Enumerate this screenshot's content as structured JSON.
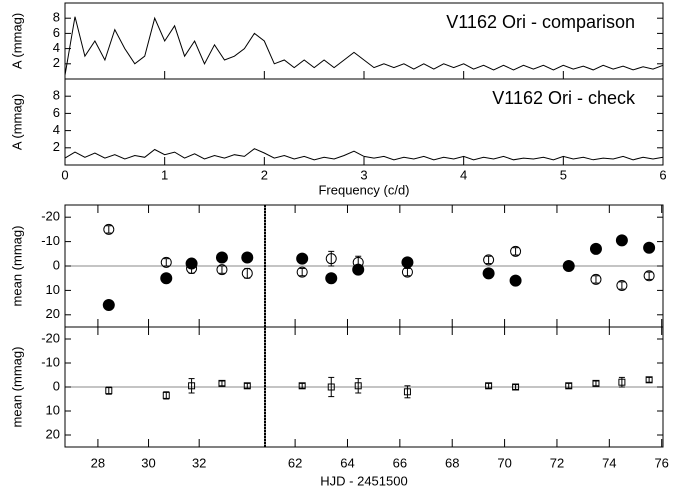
{
  "chart_data": [
    {
      "type": "line",
      "x_label": "Frequency (c/d)",
      "xlim": [
        0,
        6
      ],
      "xticks": [
        0,
        1,
        2,
        3,
        4,
        5,
        6
      ],
      "x": [
        0,
        0.1,
        0.2,
        0.3,
        0.4,
        0.5,
        0.6,
        0.7,
        0.8,
        0.9,
        1,
        1.1,
        1.2,
        1.3,
        1.4,
        1.5,
        1.6,
        1.7,
        1.8,
        1.9,
        2,
        2.1,
        2.2,
        2.3,
        2.4,
        2.5,
        2.6,
        2.7,
        2.8,
        2.9,
        3,
        3.1,
        3.2,
        3.3,
        3.4,
        3.5,
        3.6,
        3.7,
        3.8,
        3.9,
        4,
        4.1,
        4.2,
        4.3,
        4.4,
        4.5,
        4.6,
        4.7,
        4.8,
        4.9,
        5,
        5.1,
        5.2,
        5.3,
        5.4,
        5.5,
        5.6,
        5.7,
        5.8,
        5.9,
        6
      ],
      "panels": [
        {
          "y_label": "A (mmag)",
          "ylim": [
            0,
            10
          ],
          "yticks": [
            2,
            4,
            6,
            8
          ],
          "series": [
            {
              "name": "V1162 Ori - comparison",
              "color": "#000000",
              "values": [
                0.5,
                8.2,
                3,
                5,
                2.5,
                6.5,
                4,
                2,
                3,
                8,
                5,
                7,
                3,
                5,
                2,
                4.5,
                2.5,
                3,
                4,
                6,
                5,
                2,
                2.5,
                1.5,
                2.5,
                1.5,
                2.5,
                1.5,
                2.5,
                3.5,
                2.5,
                1.5,
                2,
                1.5,
                2,
                1.3,
                2,
                1.3,
                2,
                1.5,
                2,
                1.3,
                1.8,
                1.2,
                1.8,
                1.2,
                1.8,
                1.3,
                1.8,
                1.2,
                1.8,
                1.3,
                1.7,
                1.2,
                1.8,
                1.3,
                1.7,
                1.2,
                1.6,
                1.3,
                1.8
              ]
            }
          ]
        },
        {
          "y_label": "A (mmag)",
          "ylim": [
            0,
            10
          ],
          "yticks": [
            2,
            4,
            6,
            8
          ],
          "series": [
            {
              "name": "V1162 Ori - check",
              "color": "#000000",
              "values": [
                0.8,
                1.5,
                0.9,
                1.4,
                0.8,
                1.2,
                0.7,
                1.1,
                0.9,
                1.8,
                1.2,
                1.5,
                0.8,
                1.3,
                0.7,
                1.1,
                0.8,
                1.2,
                1.0,
                1.9,
                1.4,
                0.8,
                1.1,
                0.7,
                1.0,
                0.6,
                0.9,
                0.7,
                1.1,
                1.6,
                1.0,
                0.8,
                1.0,
                0.6,
                0.9,
                0.7,
                1.0,
                0.6,
                0.9,
                0.7,
                1.0,
                0.6,
                0.9,
                0.7,
                1.0,
                0.6,
                0.8,
                0.7,
                0.9,
                0.6,
                1.0,
                0.7,
                0.9,
                0.6,
                0.8,
                0.7,
                1.0,
                0.6,
                0.9,
                0.7,
                0.9
              ]
            }
          ]
        }
      ]
    },
    {
      "type": "scatter",
      "x_label": "HJD - 2451500",
      "segments": [
        {
          "xlim": [
            26.7,
            34.6
          ],
          "xticks": [
            28,
            30,
            32
          ]
        },
        {
          "xlim": [
            60.85,
            76.05
          ],
          "xticks": [
            62,
            64,
            66,
            68,
            70,
            72,
            74,
            76
          ]
        }
      ],
      "x": [
        28.43,
        30.7,
        31.7,
        32.9,
        33.9,
        62.27,
        63.38,
        64.41,
        66.29,
        69.39,
        70.42,
        72.45,
        73.49,
        74.48,
        75.52
      ],
      "zero_line": true,
      "zero_line_color": "#888888",
      "panels": [
        {
          "y_label": "mean (mmag)",
          "ylim": [
            25,
            -25
          ],
          "yticks": [
            -20,
            -10,
            0,
            10,
            20
          ],
          "series": [
            {
              "marker": "open-circle",
              "color": "#000000",
              "values": [
                -15,
                -1.5,
                1,
                1.5,
                3,
                2.5,
                -3,
                -1.5,
                2.5,
                -2.5,
                -6,
                0,
                5.5,
                8,
                4
              ],
              "errors": [
                1.5,
                1.5,
                2,
                1.5,
                2,
                1.5,
                3,
                2.5,
                1.5,
                1.5,
                1.5,
                1.5,
                1.5,
                1.5,
                1.5
              ]
            },
            {
              "marker": "filled-circle",
              "color": "#000000",
              "values": [
                16,
                5,
                -1,
                -3.5,
                -3.5,
                -3,
                5,
                1.5,
                -1.5,
                3,
                6,
                0,
                -7,
                -10.5,
                -7.5
              ],
              "errors": [
                1.5,
                1.5,
                1.5,
                1.5,
                1.5,
                1.5,
                1.5,
                1.5,
                1.5,
                1.5,
                1.5,
                1.5,
                1.5,
                1.5,
                1.5
              ]
            }
          ]
        },
        {
          "y_label": "mean (mmag)",
          "ylim": [
            25,
            -25
          ],
          "yticks": [
            -20,
            -10,
            0,
            10,
            20
          ],
          "series": [
            {
              "marker": "open-square",
              "color": "#000000",
              "values": [
                1.5,
                3.5,
                -0.5,
                -1.5,
                -0.5,
                -0.5,
                0,
                -0.5,
                2,
                -0.5,
                0,
                -0.5,
                -1.5,
                -2,
                -3
              ],
              "errors": [
                1.5,
                1.5,
                3,
                1,
                1,
                1,
                4,
                3,
                2.5,
                1,
                1,
                1,
                1,
                2,
                1
              ]
            }
          ]
        }
      ]
    }
  ]
}
